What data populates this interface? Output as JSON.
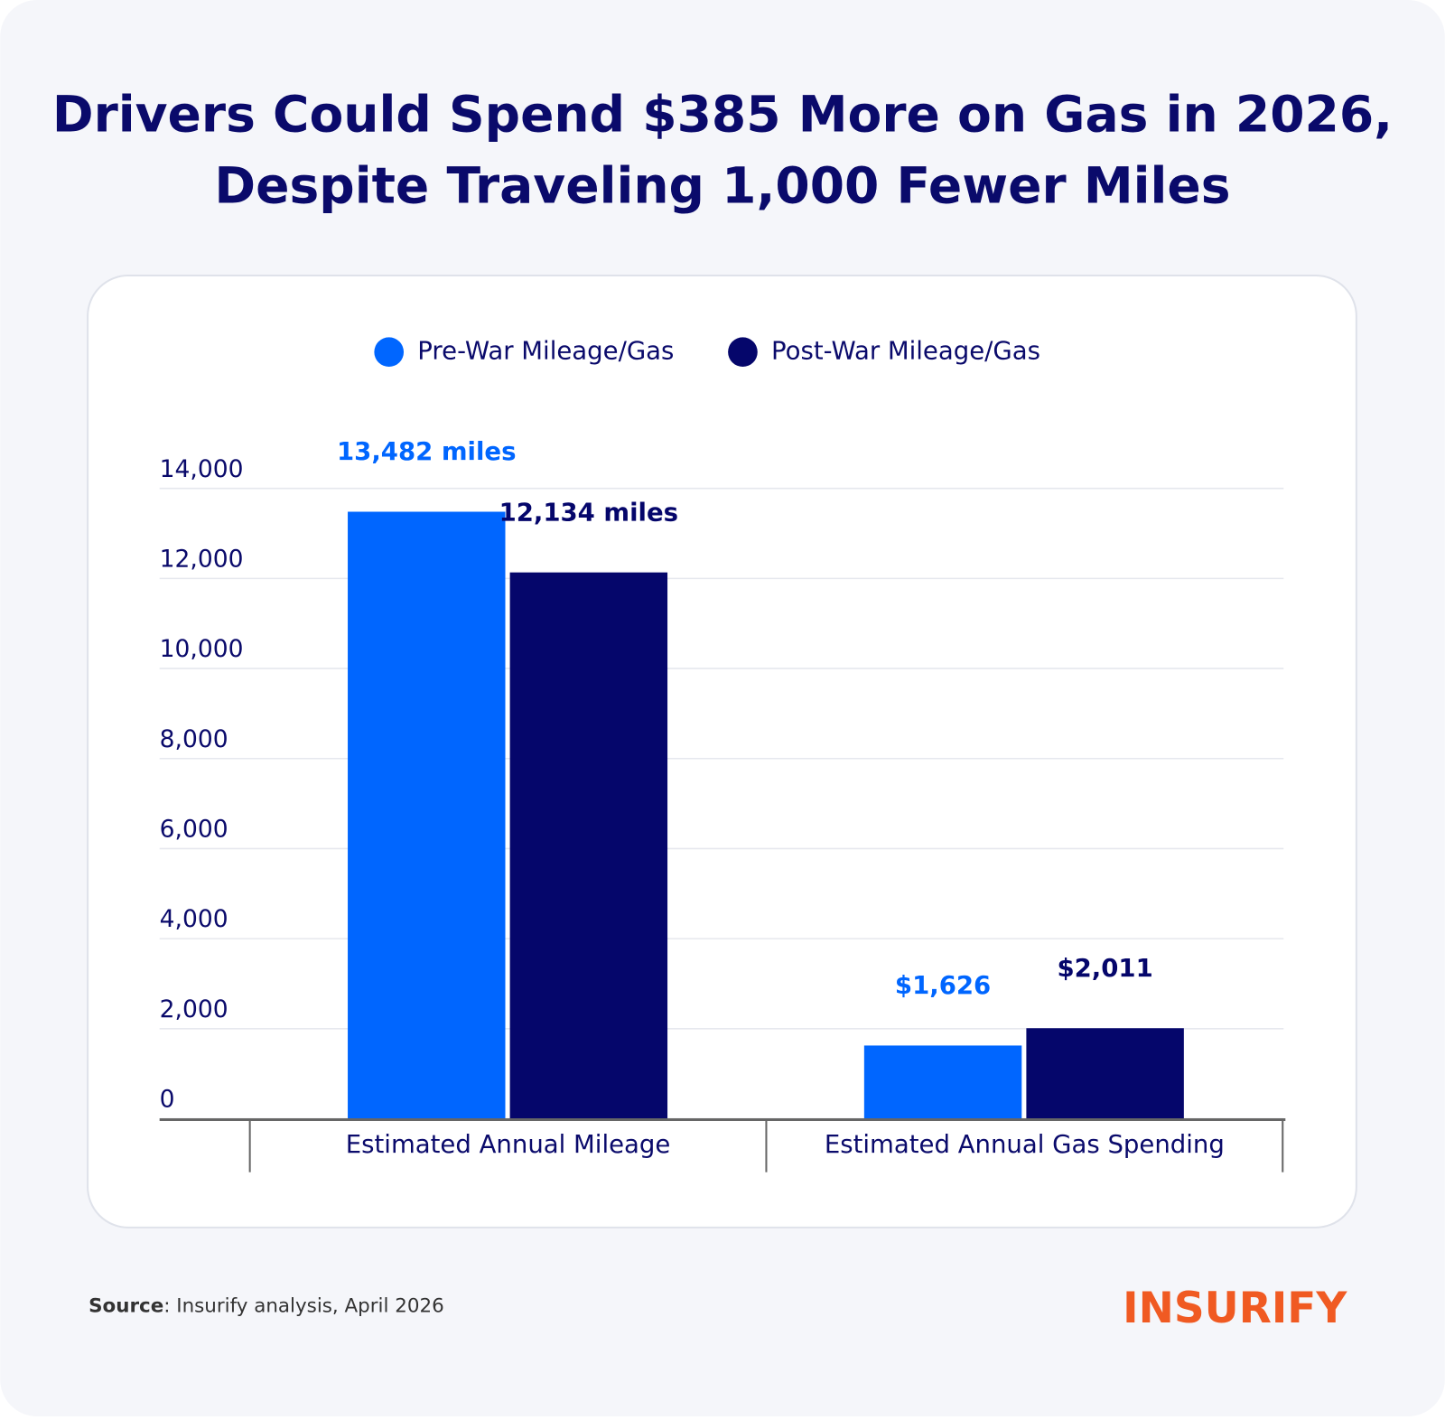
{
  "chart_data": {
    "type": "bar",
    "title": [
      "Drivers Could Spend $385 More on Gas in 2026,",
      "Despite Traveling 1,000 Fewer Miles"
    ],
    "categories": [
      "Estimated Annual Mileage",
      "Estimated Annual Gas Spending"
    ],
    "series": [
      {
        "name": "Pre-War Mileage/Gas",
        "color": "#0066ff",
        "values": [
          13482,
          1626
        ],
        "value_labels": [
          "13,482 miles",
          "$1,626"
        ]
      },
      {
        "name": "Post-War Mileage/Gas",
        "color": "#05066b",
        "values": [
          12134,
          2011
        ],
        "value_labels": [
          "12,134 miles",
          "$2,011"
        ]
      }
    ],
    "ylim": [
      0,
      14000
    ],
    "yticks": [
      0,
      {
        "value": 2000,
        "label": "2,000"
      },
      {
        "value": 4000,
        "label": "4,000"
      },
      {
        "value": 6000,
        "label": "6,000"
      },
      {
        "value": 8000,
        "label": "8,000"
      },
      {
        "value": 10000,
        "label": "10,000"
      },
      {
        "value": 12000,
        "label": "12,000"
      },
      {
        "value": 14000,
        "label": "14,000"
      }
    ],
    "grid": true,
    "legend": "top"
  },
  "source": {
    "label": "Source",
    "text": ": Insurify analysis, April 2026"
  },
  "logo": "INSURIFY"
}
